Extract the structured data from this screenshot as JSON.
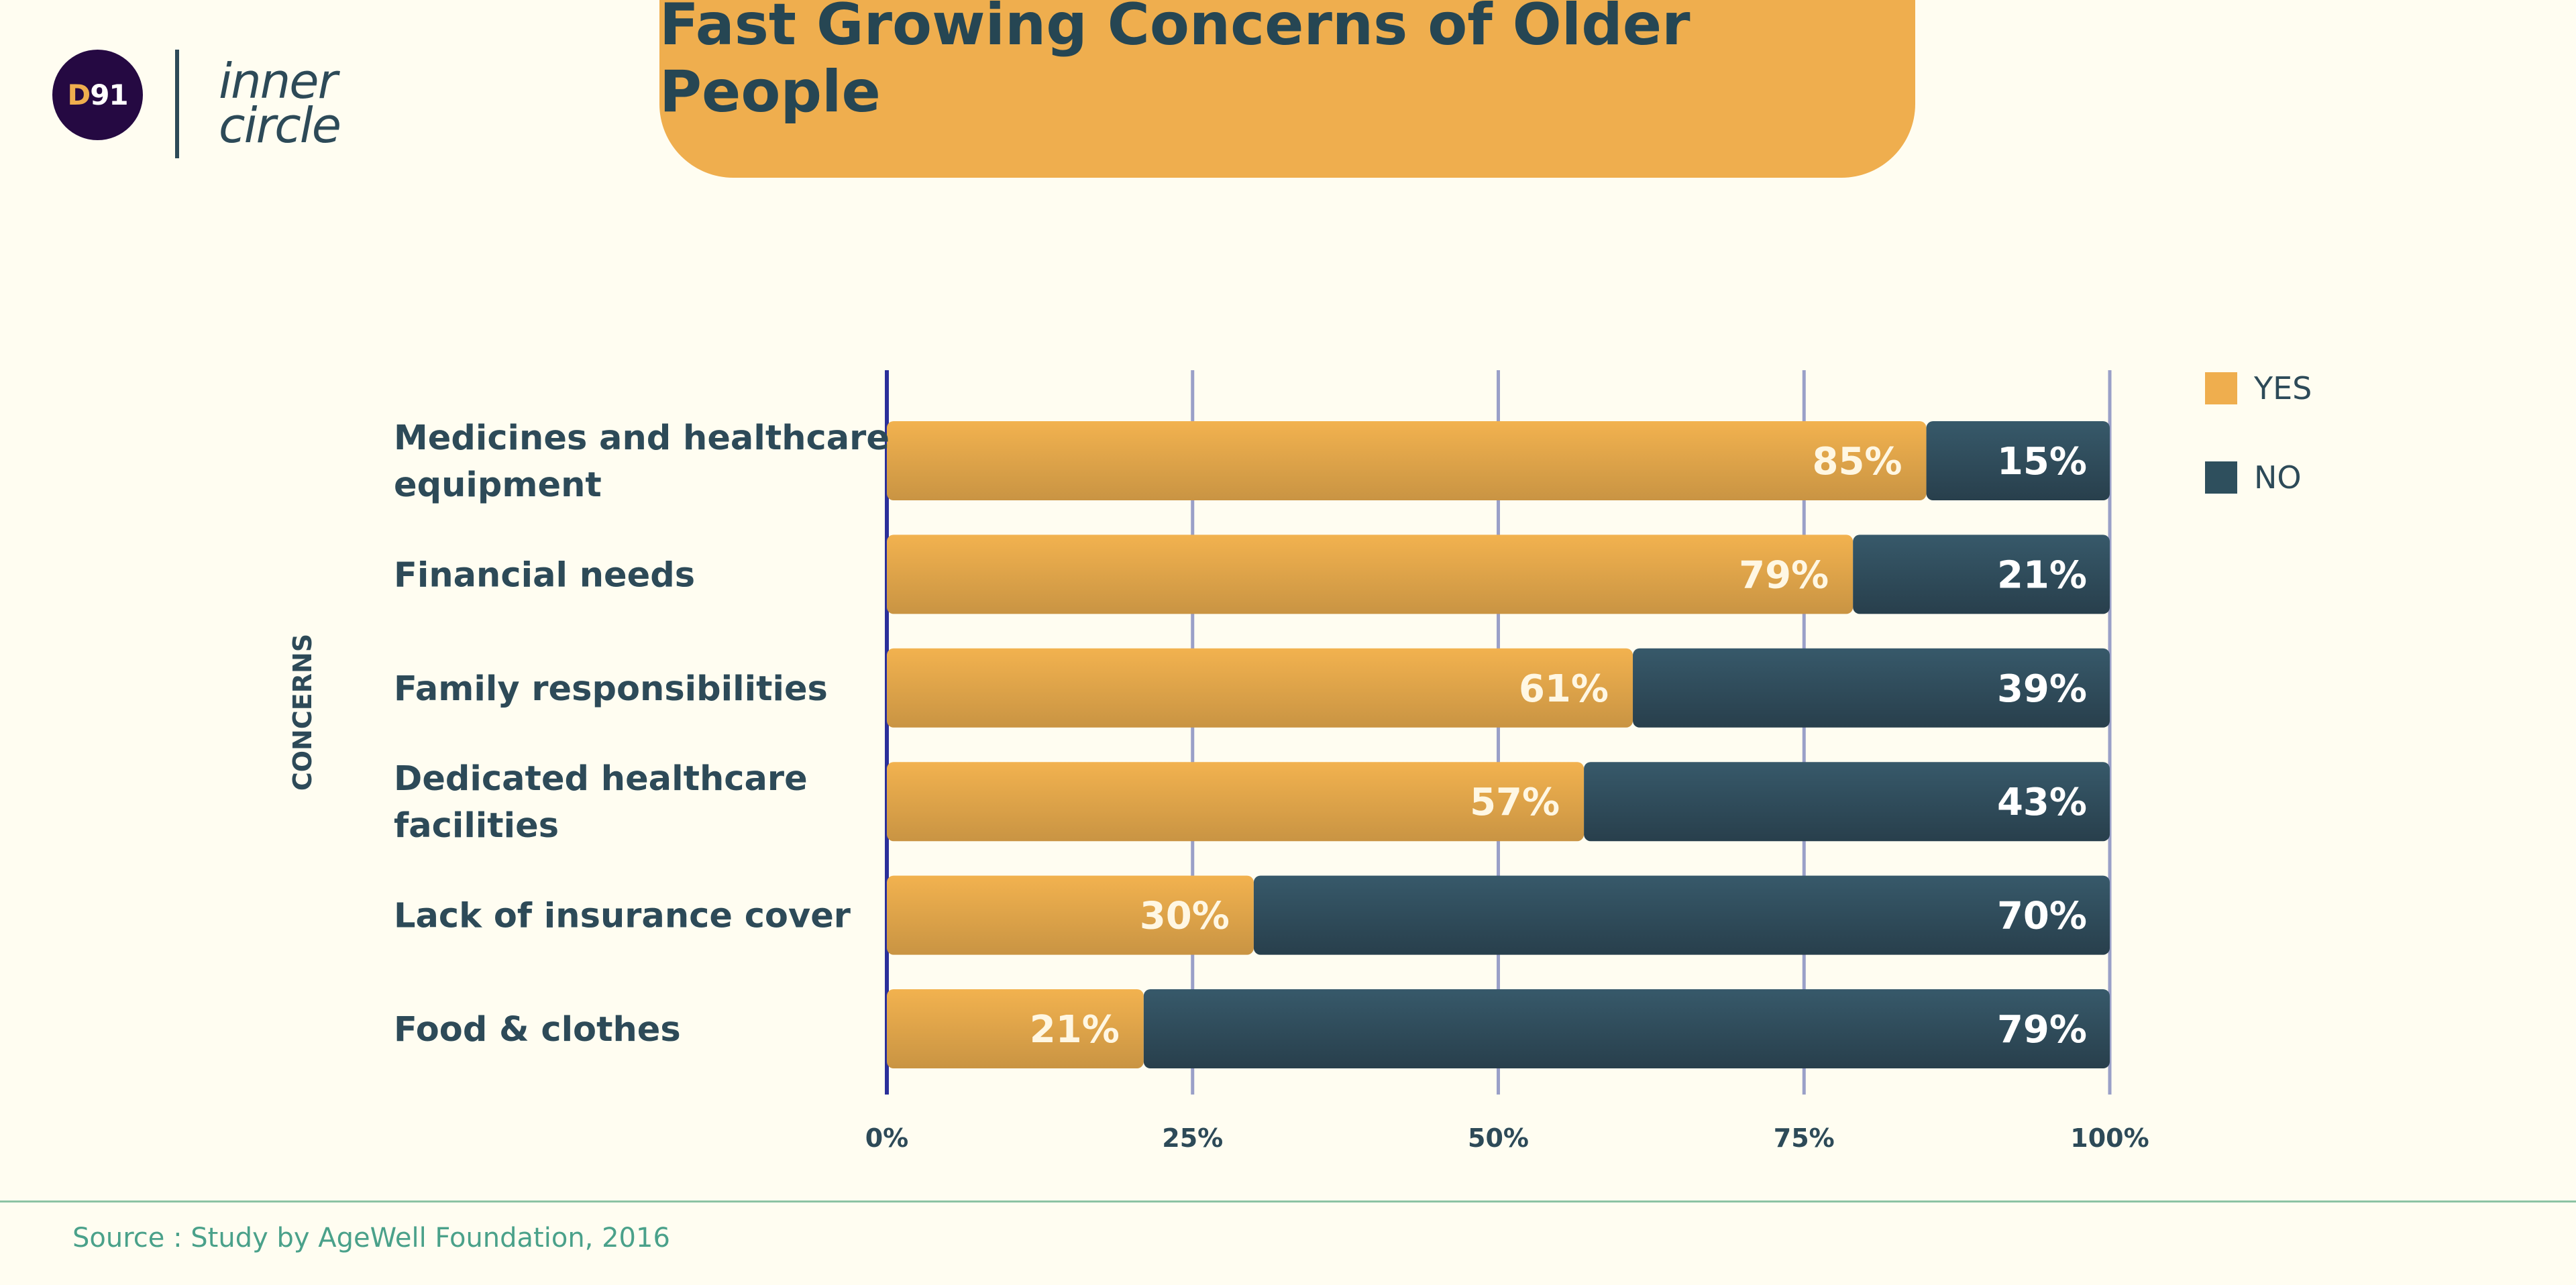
{
  "header": {
    "logo_letter": "D",
    "logo_number": "91",
    "brand_line1": "inner",
    "brand_line2": "circle"
  },
  "footer": {
    "source": "Source : Study by AgeWell Foundation, 2016"
  },
  "colors": {
    "yes": "#efae4e",
    "no": "#2e4f5d",
    "text": "#2d4a58",
    "axis": "#2b2f9a",
    "grid": "#9aa0c8"
  },
  "chart_data": {
    "type": "bar",
    "orientation": "horizontal",
    "stacked": true,
    "title": "Fast Growing Concerns of Older People",
    "ylabel": "CONCERNS",
    "xlabel": "",
    "categories": [
      [
        "Medicines and healthcare",
        "equipment"
      ],
      [
        "Financial needs"
      ],
      [
        "Family responsibilities"
      ],
      [
        "Dedicated healthcare",
        "facilities"
      ],
      [
        "Lack of insurance cover"
      ],
      [
        "Food & clothes"
      ]
    ],
    "series": [
      {
        "name": "YES",
        "values": [
          85,
          79,
          61,
          57,
          30,
          21
        ]
      },
      {
        "name": "NO",
        "values": [
          15,
          21,
          39,
          43,
          70,
          79
        ]
      }
    ],
    "xlim": [
      0,
      100
    ],
    "xticks": [
      "0%",
      "25%",
      "50%",
      "75%",
      "100%"
    ],
    "legend": "top-right",
    "grid": true
  }
}
